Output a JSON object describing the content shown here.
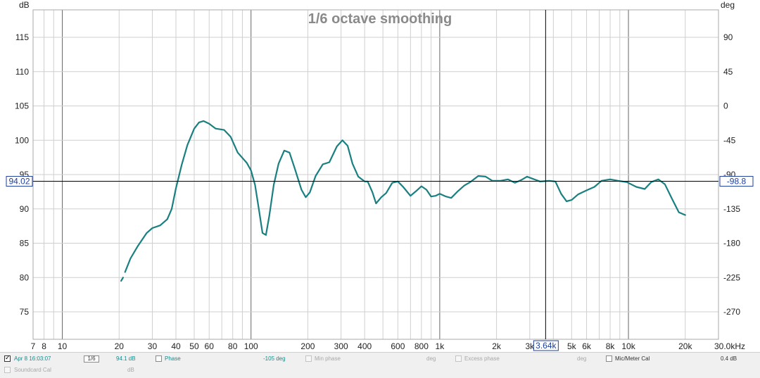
{
  "chart_data": {
    "type": "line",
    "title": "1/6 octave smoothing",
    "y_unit_left": "dB",
    "y_unit_right": "deg",
    "x_unit": "kHz",
    "x_scale": "log",
    "xlim": [
      7,
      30000
    ],
    "ylim": [
      71,
      119
    ],
    "y_ticks_left": [
      "75",
      "80",
      "85",
      "90",
      "95",
      "100",
      "105",
      "110",
      "115"
    ],
    "y_ticks_right": [
      "-270",
      "-225",
      "-180",
      "-135",
      "-90",
      "-45",
      "0",
      "45",
      "90"
    ],
    "x_ticks": [
      {
        "v": 7,
        "label": "7"
      },
      {
        "v": 8,
        "label": "8"
      },
      {
        "v": 10,
        "label": "10"
      },
      {
        "v": 20,
        "label": "20"
      },
      {
        "v": 30,
        "label": "30"
      },
      {
        "v": 40,
        "label": "40"
      },
      {
        "v": 50,
        "label": "50"
      },
      {
        "v": 60,
        "label": "60"
      },
      {
        "v": 80,
        "label": "80"
      },
      {
        "v": 100,
        "label": "100"
      },
      {
        "v": 200,
        "label": "200"
      },
      {
        "v": 300,
        "label": "300"
      },
      {
        "v": 400,
        "label": "400"
      },
      {
        "v": 600,
        "label": "600"
      },
      {
        "v": 800,
        "label": "800"
      },
      {
        "v": 1000,
        "label": "1k"
      },
      {
        "v": 2000,
        "label": "2k"
      },
      {
        "v": 3000,
        "label": "3k"
      },
      {
        "v": 5000,
        "label": "5k"
      },
      {
        "v": 6000,
        "label": "6k"
      },
      {
        "v": 8000,
        "label": "8k"
      },
      {
        "v": 10000,
        "label": "10k"
      },
      {
        "v": 20000,
        "label": "20k"
      },
      {
        "v": 30000,
        "label": "30.0kHz"
      }
    ],
    "grid": true,
    "cursor": {
      "x": 3640,
      "y": 94.02,
      "x_label": "3.64k",
      "y_label": "94.02",
      "right_label": "-98.8"
    },
    "series": [
      {
        "color": "#1a7f80",
        "segments": [
          [
            [
              20.5,
              79.5
            ],
            [
              21,
              80
            ]
          ],
          [
            [
              21.5,
              80.8
            ],
            [
              23,
              82.8
            ],
            [
              25,
              84.5
            ],
            [
              28,
              86.5
            ],
            [
              30,
              87.2
            ],
            [
              33,
              87.6
            ],
            [
              36,
              88.5
            ],
            [
              38,
              90
            ],
            [
              40,
              93
            ],
            [
              43,
              96.5
            ],
            [
              46,
              99.3
            ],
            [
              50,
              101.7
            ],
            [
              53,
              102.6
            ],
            [
              56,
              102.8
            ],
            [
              60,
              102.4
            ],
            [
              65,
              101.7
            ],
            [
              72,
              101.5
            ],
            [
              78,
              100.5
            ],
            [
              85,
              98.2
            ],
            [
              95,
              96.7
            ],
            [
              100,
              95.6
            ],
            [
              105,
              93.5
            ],
            [
              110,
              90
            ],
            [
              115,
              86.5
            ],
            [
              120,
              86.2
            ],
            [
              125,
              89
            ],
            [
              132,
              93.5
            ],
            [
              140,
              96.6
            ],
            [
              150,
              98.5
            ],
            [
              160,
              98.2
            ],
            [
              170,
              96
            ],
            [
              185,
              92.8
            ],
            [
              195,
              91.7
            ],
            [
              205,
              92.4
            ],
            [
              220,
              94.8
            ],
            [
              240,
              96.5
            ],
            [
              260,
              96.8
            ],
            [
              285,
              99.1
            ],
            [
              305,
              100
            ],
            [
              325,
              99.2
            ],
            [
              345,
              96.6
            ],
            [
              370,
              94.7
            ],
            [
              400,
              94
            ],
            [
              415,
              94
            ],
            [
              440,
              92.4
            ],
            [
              460,
              90.8
            ],
            [
              490,
              91.7
            ],
            [
              520,
              92.3
            ],
            [
              560,
              93.8
            ],
            [
              600,
              94
            ],
            [
              640,
              93.2
            ],
            [
              700,
              91.9
            ],
            [
              750,
              92.6
            ],
            [
              800,
              93.3
            ],
            [
              850,
              92.8
            ],
            [
              900,
              91.8
            ],
            [
              950,
              91.9
            ],
            [
              1000,
              92.2
            ],
            [
              1080,
              91.8
            ],
            [
              1150,
              91.6
            ],
            [
              1250,
              92.6
            ],
            [
              1350,
              93.4
            ],
            [
              1450,
              93.9
            ],
            [
              1600,
              94.8
            ],
            [
              1750,
              94.7
            ],
            [
              1900,
              94.1
            ],
            [
              2100,
              94.1
            ],
            [
              2300,
              94.3
            ],
            [
              2500,
              93.8
            ],
            [
              2700,
              94.2
            ],
            [
              2900,
              94.7
            ],
            [
              3100,
              94.4
            ],
            [
              3400,
              94
            ],
            [
              3800,
              94.1
            ],
            [
              4100,
              94
            ],
            [
              4400,
              92.2
            ],
            [
              4700,
              91.1
            ],
            [
              5000,
              91.3
            ],
            [
              5400,
              92.1
            ],
            [
              6000,
              92.7
            ],
            [
              6600,
              93.2
            ],
            [
              7200,
              94.1
            ],
            [
              8000,
              94.3
            ],
            [
              8800,
              94.1
            ],
            [
              9800,
              93.9
            ],
            [
              11000,
              93.2
            ],
            [
              12200,
              92.9
            ],
            [
              13200,
              93.9
            ],
            [
              14400,
              94.3
            ],
            [
              15600,
              93.6
            ],
            [
              17000,
              91.5
            ],
            [
              18500,
              89.5
            ],
            [
              20000,
              89.1
            ]
          ]
        ]
      }
    ]
  },
  "legend": {
    "row1": {
      "measurement": "Apr 8 16:03:07",
      "smoothing": "1/6",
      "spl_value": "94.1 dB",
      "phase_label": "Phase",
      "phase_value": "-105 deg",
      "min_phase_label": "Min phase",
      "min_phase_unit": "deg",
      "excess_phase_label": "Excess phase",
      "excess_phase_unit": "deg",
      "mic_cal_label": "Mic/Meter Cal",
      "mic_cal_value": "0.4 dB"
    },
    "row2": {
      "soundcard_cal_label": "Soundcard Cal",
      "soundcard_cal_unit": "dB"
    }
  }
}
